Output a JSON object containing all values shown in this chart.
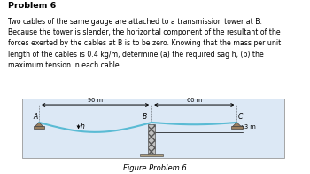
{
  "title_bold": "Problem 6",
  "body_text": "Two cables of the same gauge are attached to a transmission tower at B.\nBecause the tower is slender, the horizontal component of the resultant of the\nforces exerted by the cables at B is to be zero. Knowing that the mass per unit\nlength of the cables is 0.4 kg/m, determine (a) the required sag h, (b) the\nmaximum tension in each cable.",
  "figure_caption": "Figure Problem 6",
  "fig_bg": "#ffffff",
  "diagram_bg": "#dce8f5",
  "cable_color": "#5abbd4",
  "label_A": "A",
  "label_B": "B",
  "label_C": "C",
  "label_h": "h",
  "dim_left": "90 m",
  "dim_right": "60 m",
  "dim_3m": "3 m",
  "support_color": "#9b8060",
  "tower_fill": "#c0c0c0",
  "tower_hatch": "xxxx"
}
